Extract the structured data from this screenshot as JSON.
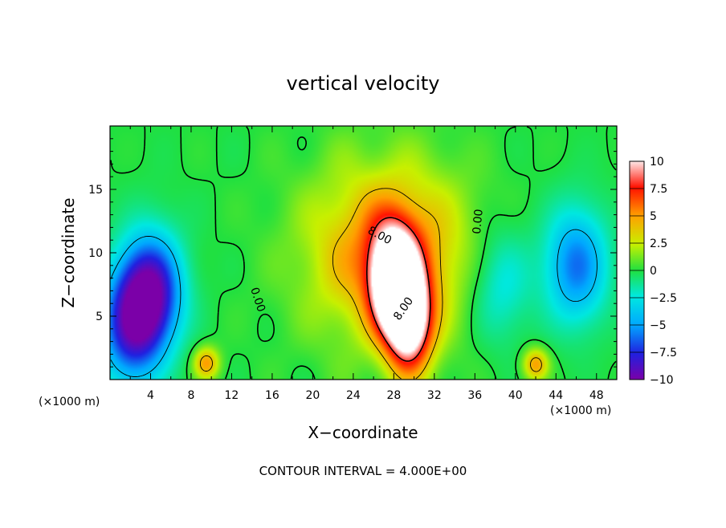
{
  "chart_data": {
    "type": "heatmap",
    "title": "vertical velocity",
    "xlabel": "X−coordinate",
    "ylabel": "Z−coordinate",
    "x_unit": "(×1000 m)",
    "y_unit": "(×1000 m)",
    "xlim": [
      0,
      50
    ],
    "ylim": [
      0,
      20
    ],
    "x_ticks": [
      "4",
      "8",
      "12",
      "16",
      "20",
      "24",
      "28",
      "32",
      "36",
      "40",
      "44",
      "48"
    ],
    "y_ticks": [
      "5",
      "10",
      "15"
    ],
    "colorbar": {
      "min": -10,
      "max": 10,
      "tick_labels": [
        "10",
        "7.5",
        "5",
        "2.5",
        "0",
        "−2.5",
        "−5",
        "−7.5",
        "−10"
      ]
    },
    "contour_labels": [
      "8.00",
      "8.00",
      "0.00",
      "0.00"
    ],
    "footer": "CONTOUR INTERVAL = 4.000E+00",
    "features": [
      {
        "kind": "updraft",
        "x": 28,
        "z": 8,
        "peak": 12
      },
      {
        "kind": "updraft",
        "x": 29.5,
        "z": 4.5,
        "peak": 11
      },
      {
        "kind": "updraft-envelope",
        "x": 27.5,
        "z": 10,
        "peak": 6
      },
      {
        "kind": "downdraft",
        "x": 4,
        "z": 7,
        "peak": -9
      },
      {
        "kind": "downdraft",
        "x": 2,
        "z": 4,
        "peak": -7
      },
      {
        "kind": "downdraft",
        "x": 46,
        "z": 9,
        "peak": -6
      },
      {
        "kind": "downdraft",
        "x": 38.5,
        "z": 7.5,
        "peak": -3
      },
      {
        "kind": "updraft",
        "x": 9.5,
        "z": 1.3,
        "peak": 5
      },
      {
        "kind": "updraft",
        "x": 42,
        "z": 1.2,
        "peak": 5
      }
    ]
  }
}
